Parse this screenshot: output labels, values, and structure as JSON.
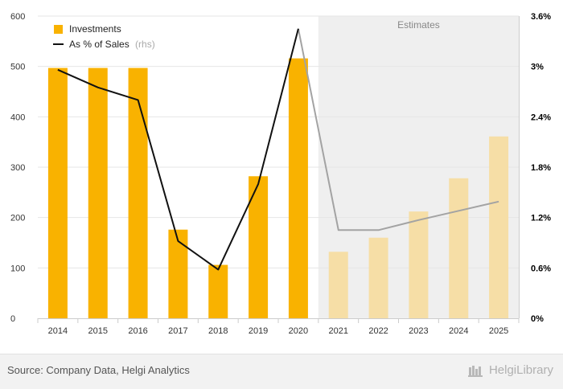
{
  "chart_data": {
    "type": "bar",
    "categories": [
      "2014",
      "2015",
      "2016",
      "2017",
      "2018",
      "2019",
      "2020",
      "2021",
      "2022",
      "2023",
      "2024",
      "2025"
    ],
    "series": [
      {
        "name": "Investments",
        "axis": "left",
        "type": "bar",
        "values": [
          497,
          497,
          497,
          176,
          106,
          282,
          516,
          132,
          160,
          212,
          278,
          361
        ]
      },
      {
        "name": "As % of Sales",
        "name_suffix": "(rhs)",
        "axis": "right",
        "type": "line",
        "values": [
          2.96,
          2.75,
          2.6,
          0.92,
          0.58,
          1.6,
          3.45,
          1.05,
          1.05,
          1.17,
          1.28,
          1.39
        ]
      }
    ],
    "estimates_from": "2021",
    "estimates_label": "Estimates",
    "y_left": {
      "lim": [
        0,
        600
      ],
      "ticks": [
        "0",
        "100",
        "200",
        "300",
        "400",
        "500",
        "600"
      ]
    },
    "y_right": {
      "lim": [
        0,
        3.6
      ],
      "ticks": [
        "0%",
        "0.6%",
        "1.2%",
        "1.8%",
        "2.4%",
        "3%",
        "3.6%"
      ]
    },
    "grid": true,
    "legend": "top-left",
    "colors": {
      "bar": "#f9b200",
      "bar_estimate": "#f6dea6",
      "line": "#111111",
      "line_estimate": "#a3a3a3",
      "estimate_shade": "#efefef"
    }
  },
  "footer": {
    "source": "Source: Company Data, Helgi Analytics",
    "brand": "HelgiLibrary"
  }
}
